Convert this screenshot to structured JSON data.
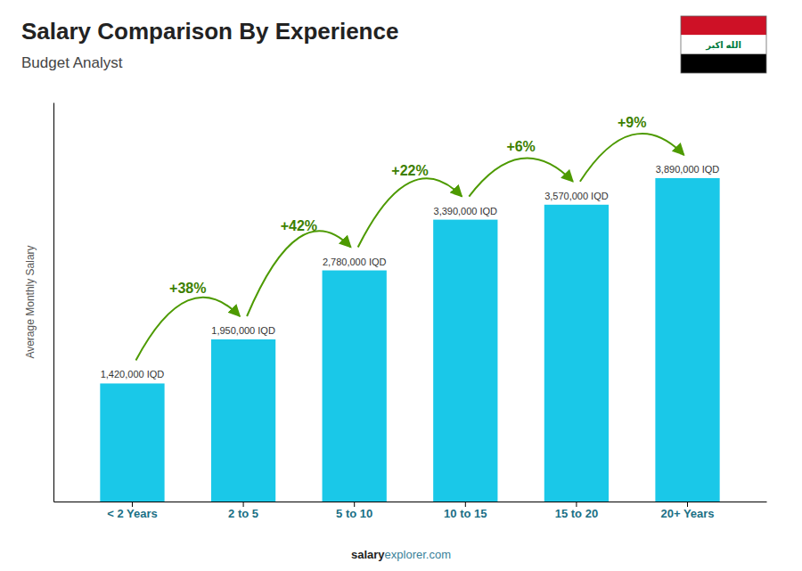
{
  "chart_data": {
    "type": "bar",
    "title": "Salary Comparison By Experience",
    "subtitle": "Budget Analyst",
    "y_label": "Average Monthly Salary",
    "categories": [
      "< 2 Years",
      "2 to 5",
      "5 to 10",
      "10 to 15",
      "15 to 20",
      "20+ Years"
    ],
    "values": [
      1420000,
      1950000,
      2780000,
      3390000,
      3570000,
      3890000
    ],
    "value_labels": [
      "1,420,000 IQD",
      "1,950,000 IQD",
      "2,780,000 IQD",
      "3,390,000 IQD",
      "3,570,000 IQD",
      "3,890,000 IQD"
    ],
    "data_labels": true,
    "annotations": [
      "+38%",
      "+42%",
      "+22%",
      "+6%",
      "+9%"
    ],
    "footer": [
      "salary",
      "explorer.com"
    ],
    "flag_text": "الله اكبر",
    "color": "#1ac8e8",
    "ylim": [
      0,
      4800000
    ],
    "tick_labels": "x",
    "grid": false
  }
}
